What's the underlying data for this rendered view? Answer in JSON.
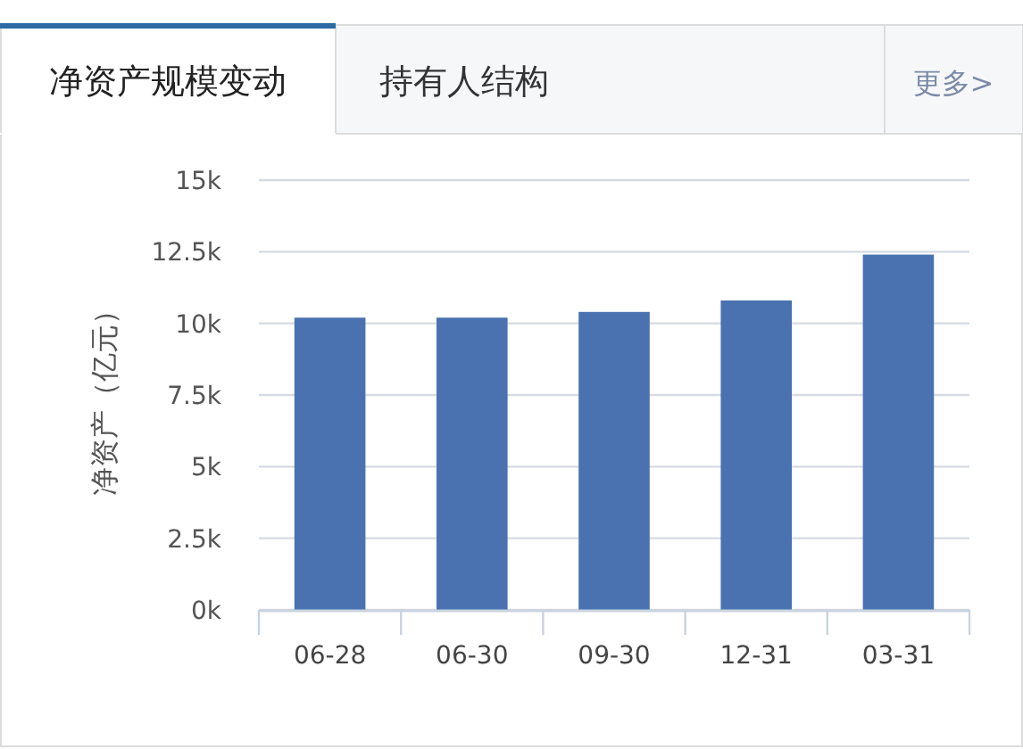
{
  "chart_data": {
    "type": "bar",
    "title": "净资产规模变动",
    "ylabel": "净资产（亿元）",
    "annotations": [
      "持有人结构",
      "更多>"
    ],
    "categories": [
      "06-28",
      "06-30",
      "09-30",
      "12-31",
      "03-31"
    ],
    "values": [
      10200,
      10200,
      10400,
      10800,
      12400
    ],
    "color": "#4a72b0",
    "ylim": [
      0,
      15000
    ],
    "yticks": [
      {
        "value": 0,
        "label": "0k"
      },
      {
        "value": 2500,
        "label": "2.5k"
      },
      {
        "value": 5000,
        "label": "5k"
      },
      {
        "value": 7500,
        "label": "7.5k"
      },
      {
        "value": 10000,
        "label": "10k"
      },
      {
        "value": 12500,
        "label": "12.5k"
      },
      {
        "value": 15000,
        "label": "15k"
      }
    ],
    "grid": "y"
  }
}
